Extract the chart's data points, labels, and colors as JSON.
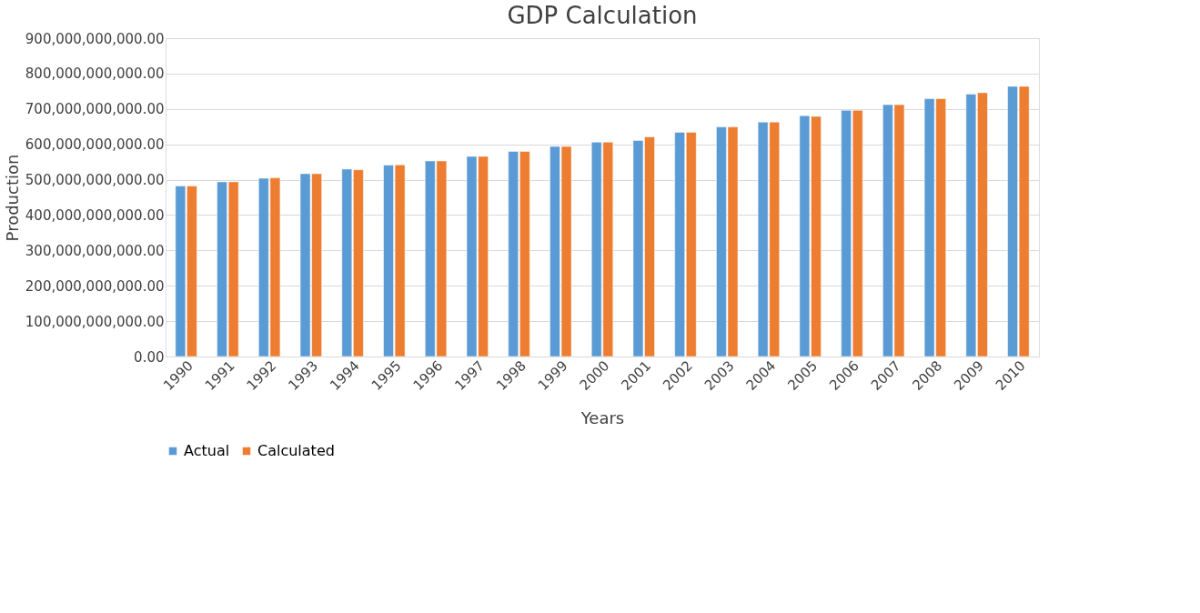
{
  "chart_data": {
    "type": "bar",
    "title": "GDP Calculation",
    "xlabel": "Years",
    "ylabel": "Production",
    "categories": [
      "1990",
      "1991",
      "1992",
      "1993",
      "1994",
      "1995",
      "1996",
      "1997",
      "1998",
      "1999",
      "2000",
      "2001",
      "2002",
      "2003",
      "2004",
      "2005",
      "2006",
      "2007",
      "2008",
      "2009",
      "2010"
    ],
    "series": [
      {
        "name": "Actual",
        "color": "#5b9bd5",
        "values": [
          482000000000,
          494000000000,
          504000000000,
          517000000000,
          530000000000,
          541000000000,
          553000000000,
          566000000000,
          580000000000,
          594000000000,
          606000000000,
          611000000000,
          634000000000,
          649000000000,
          663000000000,
          681000000000,
          696000000000,
          712000000000,
          729000000000,
          742000000000,
          764000000000
        ]
      },
      {
        "name": "Calculated",
        "color": "#ed7d31",
        "values": [
          482000000000,
          494000000000,
          505000000000,
          517000000000,
          528000000000,
          542000000000,
          553000000000,
          566000000000,
          580000000000,
          594000000000,
          606000000000,
          621000000000,
          634000000000,
          649000000000,
          663000000000,
          679000000000,
          696000000000,
          712000000000,
          729000000000,
          746000000000,
          764000000000
        ]
      }
    ],
    "ylim": [
      0,
      900000000000
    ],
    "yticks": [
      {
        "value": 0,
        "label": "0.00"
      },
      {
        "value": 100000000000,
        "label": "100,000,000,000.00"
      },
      {
        "value": 200000000000,
        "label": "200,000,000,000.00"
      },
      {
        "value": 300000000000,
        "label": "300,000,000,000.00"
      },
      {
        "value": 400000000000,
        "label": "400,000,000,000.00"
      },
      {
        "value": 500000000000,
        "label": "500,000,000,000.00"
      },
      {
        "value": 600000000000,
        "label": "600,000,000,000.00"
      },
      {
        "value": 700000000000,
        "label": "700,000,000,000.00"
      },
      {
        "value": 800000000000,
        "label": "800,000,000,000.00"
      },
      {
        "value": 900000000000,
        "label": "900,000,000,000.00"
      }
    ],
    "grid": "y",
    "legend": "bottom"
  }
}
